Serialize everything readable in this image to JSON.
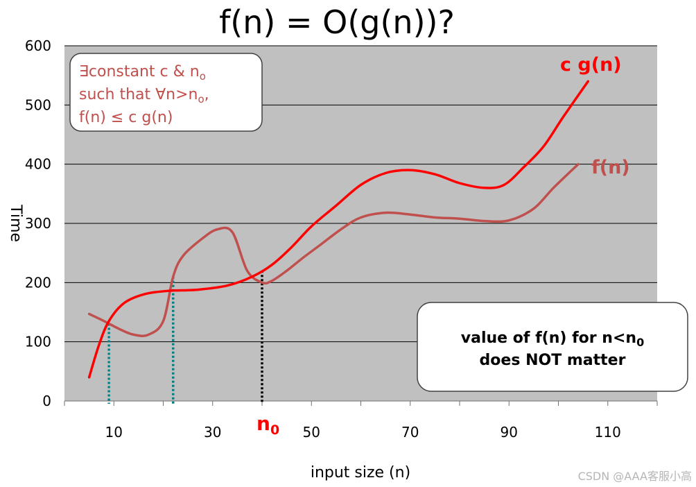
{
  "chart_data": {
    "type": "line",
    "title": "f(n) = O(g(n))?",
    "xlabel": "input size (n)",
    "ylabel": "Time",
    "xlim": [
      0,
      120
    ],
    "ylim": [
      0,
      600
    ],
    "x_ticks": [
      10,
      30,
      50,
      70,
      90,
      110
    ],
    "y_ticks": [
      0,
      100,
      200,
      300,
      400,
      500,
      600
    ],
    "grid": "horizontal",
    "background_color": "#c0c0c0",
    "series": [
      {
        "name": "c g(n)",
        "color": "#ff0000",
        "x": [
          5,
          7,
          9,
          12,
          16,
          21,
          27,
          33,
          38,
          42,
          46,
          50,
          55,
          60,
          65,
          70,
          75,
          80,
          85,
          89,
          93,
          97,
          101,
          106
        ],
        "y": [
          40,
          95,
          135,
          165,
          180,
          186,
          188,
          195,
          210,
          230,
          260,
          295,
          330,
          365,
          385,
          390,
          383,
          368,
          360,
          365,
          395,
          430,
          480,
          540
        ]
      },
      {
        "name": "f(n)",
        "color": "#c0504d",
        "x": [
          5,
          8,
          11,
          14,
          17,
          20,
          22,
          24,
          28,
          31,
          34,
          37,
          40,
          42,
          45,
          48,
          52,
          56,
          60,
          65,
          70,
          75,
          80,
          85,
          90,
          95,
          99,
          104
        ],
        "y": [
          147,
          135,
          122,
          112,
          112,
          135,
          210,
          245,
          275,
          290,
          285,
          220,
          200,
          203,
          220,
          240,
          265,
          290,
          310,
          318,
          315,
          310,
          308,
          304,
          305,
          325,
          360,
          400
        ]
      }
    ],
    "markers": [
      {
        "x": 9,
        "style": "teal-dotted"
      },
      {
        "x": 22,
        "style": "teal-dotted"
      },
      {
        "x": 40,
        "style": "black-dotted",
        "label": "n0"
      }
    ],
    "annotations": {
      "definition_box": [
        "∃constant c & n",
        "such that ∀n>n",
        ", ",
        "f(n) ≤ c g(n)"
      ],
      "note_box": [
        "value of f(n) for n<n",
        "does NOT matter"
      ],
      "subscript": "o",
      "subscript_0": "0"
    }
  },
  "labels": {
    "cg": "c g(n)",
    "f": "f(n)",
    "n0_main": "n",
    "n0_sub": "0"
  },
  "watermark": "CSDN @AAA客服小高"
}
